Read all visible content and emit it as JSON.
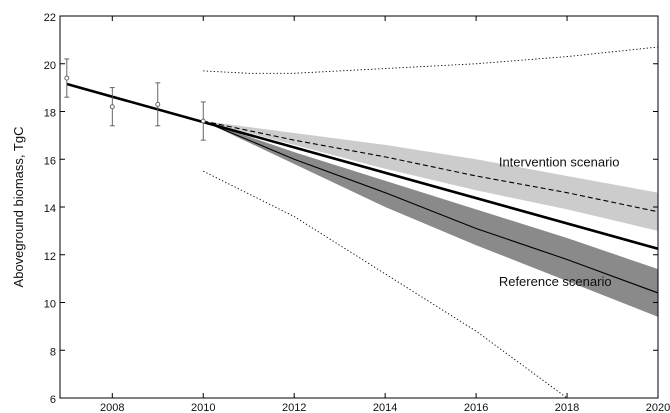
{
  "chart_data": {
    "type": "line",
    "title": "",
    "xlabel": "",
    "ylabel": "Aboveground biomass, TgC",
    "xlim": [
      2006.85,
      2020
    ],
    "ylim": [
      6,
      22
    ],
    "x_ticks": [
      2008,
      2010,
      2012,
      2014,
      2016,
      2018,
      2020
    ],
    "y_ticks": [
      6,
      8,
      10,
      12,
      14,
      16,
      18,
      20,
      22
    ],
    "grid": false,
    "legend": "none",
    "annotations": [
      {
        "text": "Intervention scenario",
        "x": 2016.5,
        "y": 15.7
      },
      {
        "text": "Reference scenario",
        "x": 2016.5,
        "y": 10.7
      }
    ],
    "observations": {
      "name": "",
      "x": [
        2007,
        2008,
        2009,
        2010
      ],
      "y": [
        19.4,
        18.2,
        18.3,
        17.6
      ],
      "err_low": [
        18.6,
        17.4,
        17.4,
        16.8
      ],
      "err_high": [
        20.2,
        19.0,
        19.2,
        18.4
      ]
    },
    "series": [
      {
        "key": "trend",
        "x": [
          2007,
          2020
        ],
        "y": [
          19.15,
          12.25
        ],
        "style": "thick"
      },
      {
        "key": "reference_mean",
        "x": [
          2010,
          2012,
          2014,
          2016,
          2018,
          2020
        ],
        "y": [
          17.6,
          16.0,
          14.6,
          13.1,
          11.8,
          10.4
        ],
        "style": "solid"
      },
      {
        "key": "intervention_mean",
        "x": [
          2010,
          2012,
          2014,
          2016,
          2018,
          2020
        ],
        "y": [
          17.6,
          16.8,
          16.1,
          15.3,
          14.6,
          13.8
        ],
        "style": "dashed"
      },
      {
        "key": "upper_bound",
        "x": [
          2010,
          2011,
          2012,
          2014,
          2016,
          2018,
          2020
        ],
        "y": [
          19.7,
          19.6,
          19.6,
          19.8,
          20.0,
          20.3,
          20.7
        ],
        "style": "dotted"
      },
      {
        "key": "lower_bound",
        "x": [
          2010,
          2012,
          2014,
          2016,
          2017,
          2018
        ],
        "y": [
          15.5,
          13.6,
          11.2,
          8.8,
          7.4,
          6.0
        ],
        "style": "dotted"
      }
    ],
    "bands": [
      {
        "key": "intervention_band",
        "color": "#cccccc",
        "x": [
          2010,
          2012,
          2014,
          2016,
          2018,
          2020
        ],
        "low": [
          17.6,
          16.6,
          15.6,
          14.7,
          13.9,
          13.0
        ],
        "high": [
          17.6,
          17.1,
          16.6,
          16.0,
          15.3,
          14.6
        ]
      },
      {
        "key": "reference_band",
        "color": "#8a8a8a",
        "x": [
          2010,
          2012,
          2014,
          2016,
          2018,
          2020
        ],
        "low": [
          17.6,
          15.8,
          14.0,
          12.4,
          10.9,
          9.4
        ],
        "high": [
          17.6,
          16.3,
          15.1,
          13.9,
          12.7,
          11.4
        ]
      }
    ]
  }
}
